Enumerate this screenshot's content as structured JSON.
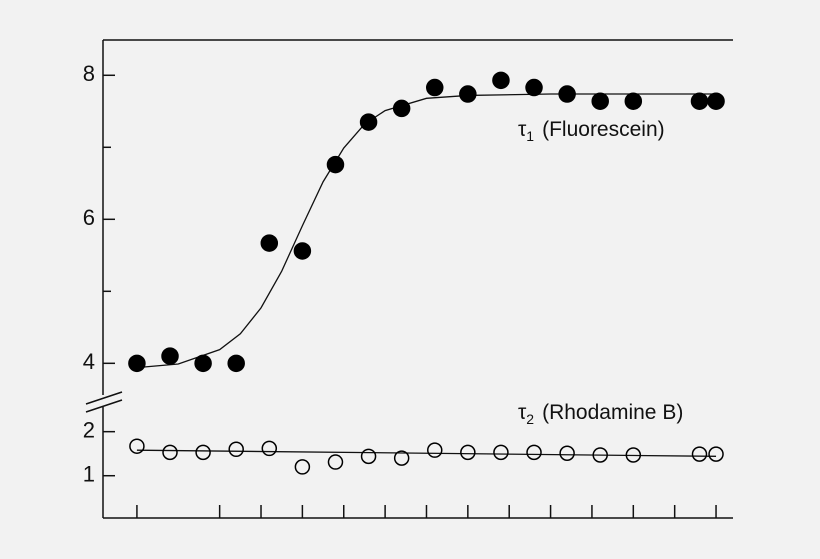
{
  "chart_data": {
    "type": "scatter",
    "color": "#000000",
    "x": [
      0,
      0.8,
      1.6,
      2.4,
      3.2,
      4.0,
      4.8,
      5.6,
      6.4,
      7.2,
      8.0,
      8.8,
      9.6,
      10.4,
      11.2,
      12.0,
      13.6,
      14.0
    ],
    "xlim": [
      -0.82,
      14.41
    ],
    "xticks": [
      0,
      2,
      3,
      4,
      5,
      6,
      7,
      8,
      9,
      10,
      11,
      12,
      13,
      14
    ],
    "ylim": [
      3.56,
      8.49
    ],
    "yticks": [
      4,
      6,
      8
    ],
    "yminorticks": [
      5,
      7
    ],
    "y2lim": [
      0.04,
      2.56
    ],
    "y2ticks": [
      1,
      2
    ],
    "series": [
      {
        "marker": "filled",
        "values": [
          4.0,
          4.1,
          4.0,
          4.0,
          5.67,
          5.56,
          6.76,
          7.35,
          7.54,
          7.83,
          7.74,
          7.93,
          7.83,
          7.74,
          7.64,
          7.64,
          7.64,
          7.64
        ]
      },
      {
        "marker": "open",
        "axis": "y2",
        "values": [
          1.67,
          1.53,
          1.53,
          1.6,
          1.62,
          1.2,
          1.31,
          1.44,
          1.4,
          1.58,
          1.53,
          1.53,
          1.53,
          1.51,
          1.47,
          1.47,
          1.49,
          1.49
        ]
      }
    ],
    "fits": [
      {
        "x": [
          0,
          1,
          2,
          2.5,
          3,
          3.5,
          4,
          4.5,
          5,
          5.5,
          6,
          7,
          8,
          10,
          12,
          14
        ],
        "values": [
          3.94,
          3.99,
          4.19,
          4.41,
          4.77,
          5.28,
          5.91,
          6.52,
          6.99,
          7.32,
          7.51,
          7.68,
          7.72,
          7.74,
          7.74,
          7.74
        ]
      },
      {
        "axis": "y2",
        "x": [
          0,
          14
        ],
        "values": [
          1.58,
          1.44
        ]
      }
    ],
    "annotations": [
      {
        "symbol": "τ",
        "subscript": "1",
        "text": "(Fluorescein)"
      },
      {
        "symbol": "τ",
        "subscript": "2",
        "text": "(Rhodamine B)"
      }
    ]
  }
}
